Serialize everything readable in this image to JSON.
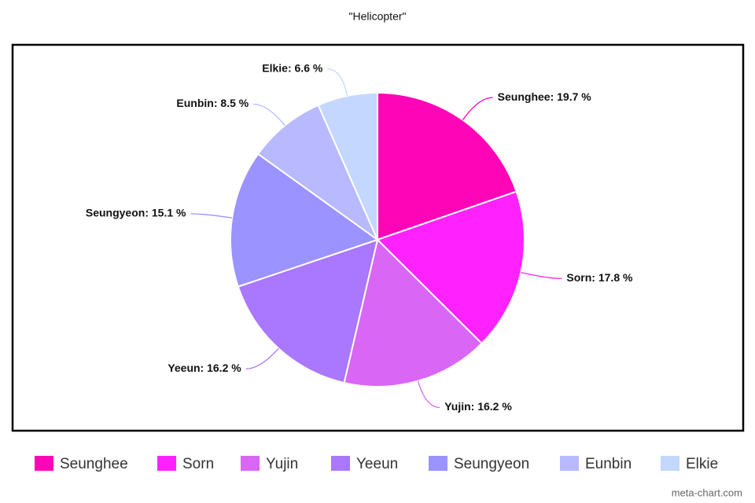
{
  "chart_data": {
    "type": "pie",
    "title": "\"Helicopter\"",
    "categories": [
      "Seunghee",
      "Sorn",
      "Yujin",
      "Yeeun",
      "Seungyeon",
      "Eunbin",
      "Elkie"
    ],
    "values": [
      19.7,
      17.8,
      16.2,
      16.2,
      15.1,
      8.5,
      6.6
    ],
    "value_labels": [
      "Seunghee: 19.7 %",
      "Sorn: 17.8 %",
      "Yujin: 16.2 %",
      "Yeeun: 16.2 %",
      "Seungyeon: 15.1 %",
      "Eunbin: 8.5 %",
      "Elkie: 6.6 %"
    ],
    "colors": [
      "#ff05b8",
      "#ff22ff",
      "#d966f5",
      "#aa77ff",
      "#9b93ff",
      "#b9b9ff",
      "#c3d7ff"
    ],
    "legend": "bottom",
    "credit": "meta-chart.com"
  }
}
